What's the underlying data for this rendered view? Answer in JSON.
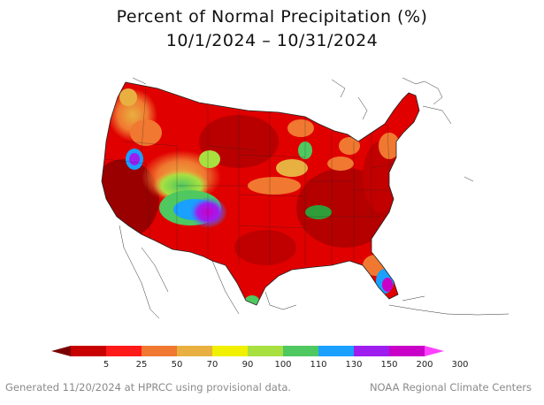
{
  "title": "Percent of Normal Precipitation (%)",
  "date_range": "10/1/2024 – 10/31/2024",
  "legend": {
    "ticks": [
      "5",
      "25",
      "50",
      "70",
      "90",
      "100",
      "110",
      "130",
      "150",
      "200",
      "300"
    ],
    "colors": [
      "#7a0000",
      "#c80000",
      "#ff1a1a",
      "#f07830",
      "#e8b040",
      "#f0f000",
      "#a8e040",
      "#4fc860",
      "#1aa0ff",
      "#9e1ef0",
      "#c800c8",
      "#ff40ff"
    ]
  },
  "footer": {
    "left": "Generated 11/20/2024 at HPRCC using provisional data.",
    "right": "NOAA Regional Climate Centers"
  }
}
